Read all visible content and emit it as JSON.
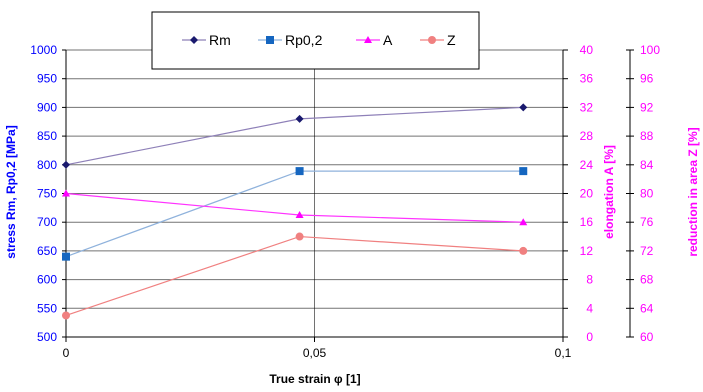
{
  "chart_data": {
    "type": "line",
    "x": [
      0,
      0.047,
      0.092
    ],
    "xlabel": "True strain φ [1]",
    "xlim": [
      0,
      0.1
    ],
    "x_ticks": [
      "0",
      "0,05",
      "0,1"
    ],
    "y_left": {
      "label": "stress Rm, Rp0,2 [MPa]",
      "lim": [
        500,
        1000
      ],
      "ticks": [
        "500",
        "550",
        "600",
        "650",
        "700",
        "750",
        "800",
        "850",
        "900",
        "950",
        "1000"
      ]
    },
    "y_right1": {
      "label": "elongation A [%]",
      "lim": [
        0,
        40
      ],
      "ticks": [
        "0",
        "4",
        "8",
        "12",
        "16",
        "20",
        "24",
        "28",
        "32",
        "36",
        "40"
      ]
    },
    "y_right2": {
      "label": "reduction in area Z [%]",
      "lim": [
        60,
        100
      ],
      "ticks": [
        "60",
        "64",
        "68",
        "72",
        "76",
        "80",
        "84",
        "88",
        "92",
        "96",
        "100"
      ]
    },
    "grid": true,
    "legend_position": "top-center",
    "series": [
      {
        "name": "Rm",
        "axis": "left",
        "values": [
          800,
          880,
          900
        ],
        "line_color": "#8e80b8",
        "marker_color": "#1a1a6e",
        "marker": "diamond"
      },
      {
        "name": "Rp0,2",
        "axis": "left",
        "values": [
          640,
          789,
          789
        ],
        "line_color": "#8fb2dc",
        "marker_color": "#1566c0",
        "marker": "square"
      },
      {
        "name": "A",
        "axis": "right1",
        "values": [
          20,
          17,
          16
        ],
        "line_color": "#ff33ff",
        "marker_color": "#ff00ff",
        "marker": "triangle"
      },
      {
        "name": "Z",
        "axis": "right2",
        "values": [
          63,
          74,
          72
        ],
        "line_color": "#f08080",
        "marker_color": "#f08080",
        "marker": "circle"
      }
    ],
    "colors": {
      "left_axis_text": "#0000ff",
      "right_axis_text": "#ff00ff",
      "axis_title": "#000000"
    }
  }
}
